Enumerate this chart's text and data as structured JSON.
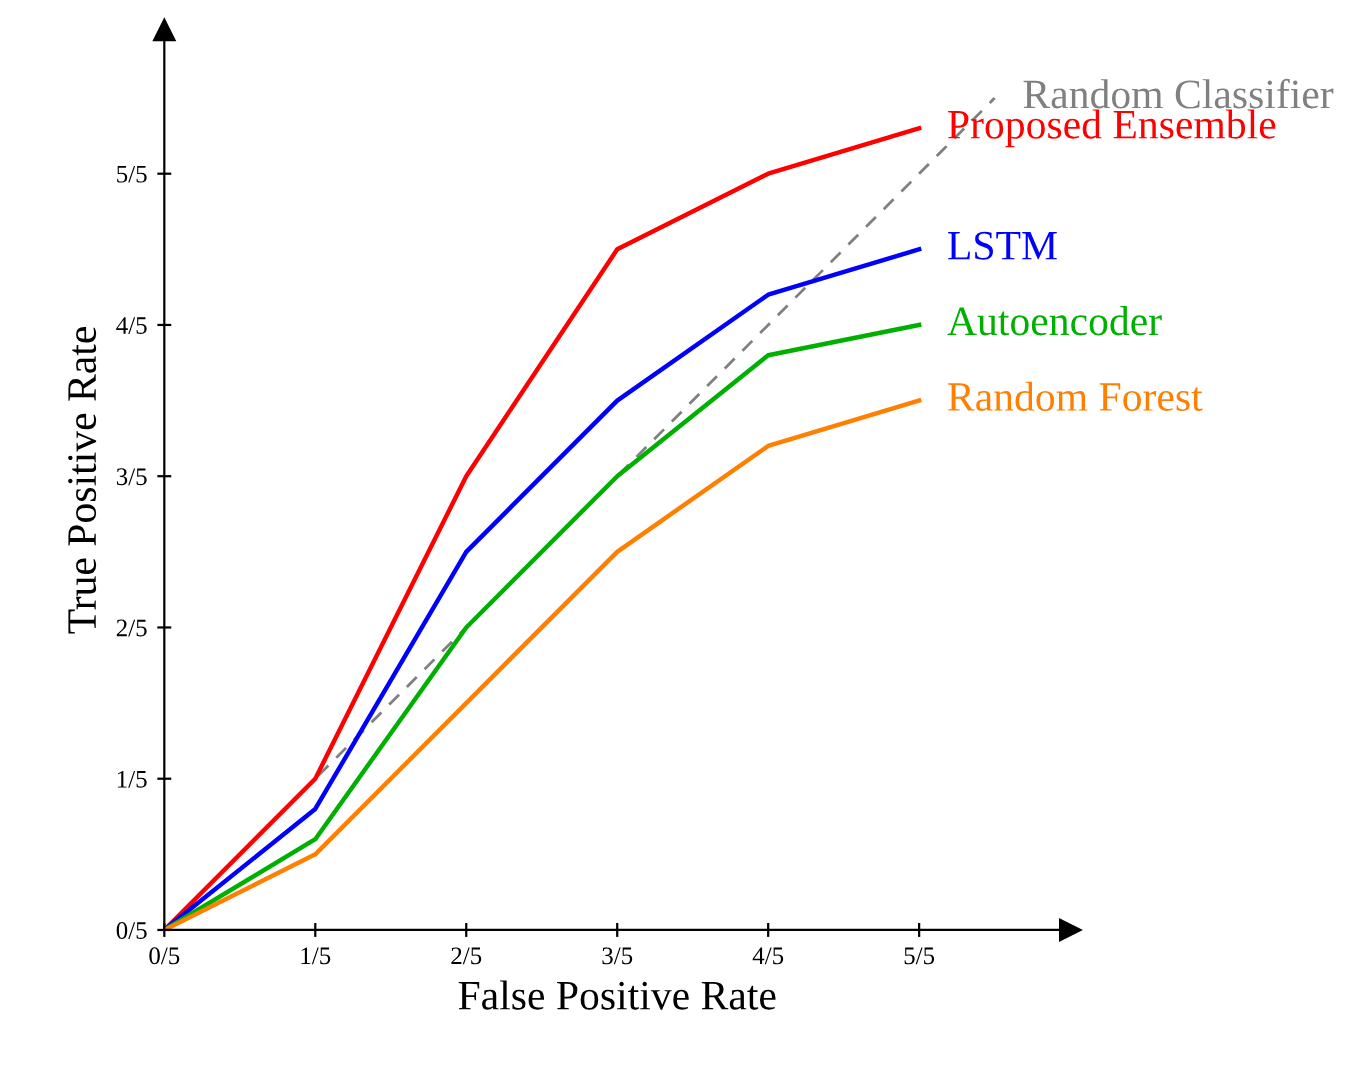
{
  "chart_data": {
    "type": "line",
    "xlabel": "False Positive Rate",
    "ylabel": "True Positive Rate",
    "x": [
      0,
      0.2,
      0.4,
      0.6,
      0.8,
      1.0
    ],
    "series": [
      {
        "name": "Random Classifier",
        "color": "#808080",
        "line_style": "dashed",
        "x": [
          0,
          1.1
        ],
        "values": [
          0,
          1.1
        ]
      },
      {
        "name": "Proposed Ensemble",
        "color": "#ff0000",
        "values": [
          0,
          0.2,
          0.6,
          0.9,
          1.0,
          1.06
        ]
      },
      {
        "name": "LSTM",
        "color": "#0000ff",
        "values": [
          0,
          0.16,
          0.5,
          0.7,
          0.84,
          0.9
        ]
      },
      {
        "name": "Autoencoder",
        "color": "#00b000",
        "values": [
          0,
          0.12,
          0.4,
          0.6,
          0.76,
          0.8
        ]
      },
      {
        "name": "Random Forest",
        "color": "#ff8000",
        "values": [
          0,
          0.1,
          0.3,
          0.5,
          0.64,
          0.7
        ]
      }
    ],
    "xlim": [
      0,
      1.2
    ],
    "ylim": [
      0,
      1.19
    ],
    "xticks": [
      {
        "value": 0,
        "label": "0/5"
      },
      {
        "value": 0.2,
        "label": "1/5"
      },
      {
        "value": 0.4,
        "label": "2/5"
      },
      {
        "value": 0.6,
        "label": "3/5"
      },
      {
        "value": 0.8,
        "label": "4/5"
      },
      {
        "value": 1.0,
        "label": "5/5"
      }
    ],
    "yticks": [
      {
        "value": 0,
        "label": "0/5"
      },
      {
        "value": 0.2,
        "label": "1/5"
      },
      {
        "value": 0.4,
        "label": "2/5"
      },
      {
        "value": 0.6,
        "label": "3/5"
      },
      {
        "value": 0.8,
        "label": "4/5"
      },
      {
        "value": 1.0,
        "label": "5/5"
      }
    ],
    "grid": false,
    "legend": false,
    "marker": "none",
    "line_style": "solid"
  }
}
